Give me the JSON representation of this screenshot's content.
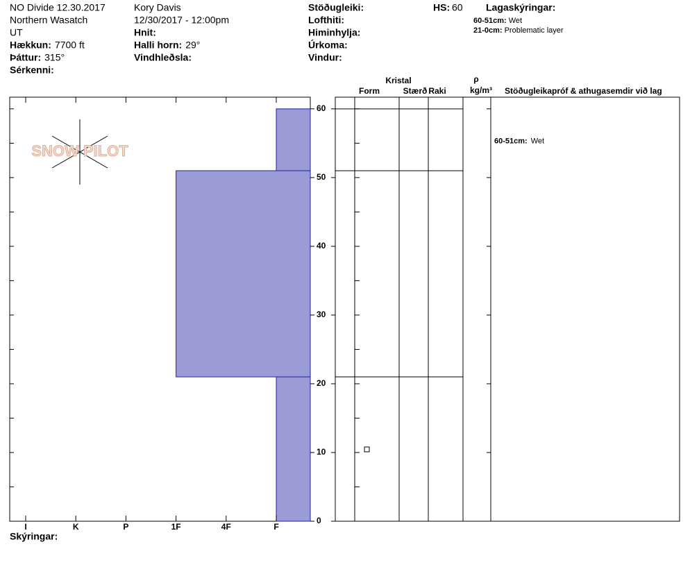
{
  "header": {
    "col1": [
      {
        "value": "NO Divide 12.30.2017"
      },
      {
        "value": "Northern Wasatch"
      },
      {
        "value": "UT"
      },
      {
        "label": "Hækkun:",
        "value": "7700 ft"
      },
      {
        "label": "Þáttur:",
        "value": "315°"
      },
      {
        "label": "Sérkenni:"
      }
    ],
    "col2": [
      {
        "value": "Kory Davis"
      },
      {
        "value": "12/30/2017 - 12:00pm"
      },
      {
        "label": "Hnit:"
      },
      {
        "label": "Halli horn:",
        "value": "29°"
      },
      {
        "label": "Vindhleðsla:"
      }
    ],
    "col3": [
      {
        "label": "Stöðugleiki:"
      },
      {
        "label": "Lofthiti:"
      },
      {
        "label": "Himinhylja:"
      },
      {
        "label": "Úrkoma:"
      },
      {
        "label": "Vindur:"
      }
    ],
    "hs": {
      "label": "HS:",
      "value": "60"
    },
    "legend_title": "Lagaskýringar:",
    "legend": [
      {
        "label": "60-51cm:",
        "text": "Wet"
      },
      {
        "label": "21-0cm:",
        "text": "Problematic layer"
      }
    ],
    "logo": "SNOW PILOT",
    "footer": "Skýringar:"
  },
  "table": {
    "kristal": "Kristal",
    "form": "Form",
    "size": "Stærð",
    "moisture": "Raki",
    "rho": "ρ",
    "density_unit": "kg/m³",
    "comments": "Stöðugleikapróf & athugasemdir við lag"
  },
  "chart_data": {
    "type": "snow-profile",
    "categories": [
      "I",
      "K",
      "P",
      "1F",
      "4F",
      "F"
    ],
    "layers": [
      {
        "top": 60,
        "bottom": 51,
        "hardness": "F",
        "comment": {
          "label": "60-51cm:",
          "text": "Wet"
        }
      },
      {
        "top": 51,
        "bottom": 21,
        "hardness": "1F"
      },
      {
        "top": 21,
        "bottom": 0,
        "hardness": "F"
      }
    ],
    "color": "#9b9bd7",
    "ylim": [
      0,
      61.7
    ],
    "yticks": [
      0,
      10,
      20,
      30,
      40,
      50,
      60
    ],
    "minor_yticks": [
      5,
      15,
      25,
      35,
      45,
      55
    ]
  }
}
